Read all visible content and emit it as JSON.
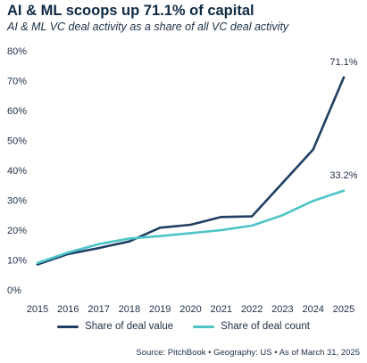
{
  "chart_data": {
    "type": "line",
    "title": "AI & ML scoops up 71.1% of capital",
    "subtitle": "AI & ML VC deal activity as a share of all VC deal activity",
    "x": [
      "2015",
      "2016",
      "2017",
      "2018",
      "2019",
      "2020",
      "2021",
      "2022",
      "2023",
      "2024",
      "2025"
    ],
    "ylim": [
      0,
      80
    ],
    "yticks": [
      "0%",
      "10%",
      "20%",
      "30%",
      "40%",
      "50%",
      "60%",
      "70%",
      "80%"
    ],
    "grid": false,
    "legend_position": "bottom",
    "series": [
      {
        "name": "Share of deal value",
        "color": "#1f3e63",
        "values": [
          8.5,
          12.0,
          14.0,
          16.2,
          20.8,
          21.8,
          24.4,
          24.6,
          35.8,
          47.0,
          71.1
        ],
        "end_label": "71.1%"
      },
      {
        "name": "Share of deal count",
        "color": "#4cc4c6",
        "values": [
          9.0,
          12.5,
          15.3,
          17.2,
          18.0,
          19.0,
          20.0,
          21.5,
          25.0,
          29.8,
          33.2
        ],
        "end_label": "33.2%"
      }
    ]
  },
  "source": "Source: PitchBook  •  Geography: US  •  As of March 31, 2025"
}
